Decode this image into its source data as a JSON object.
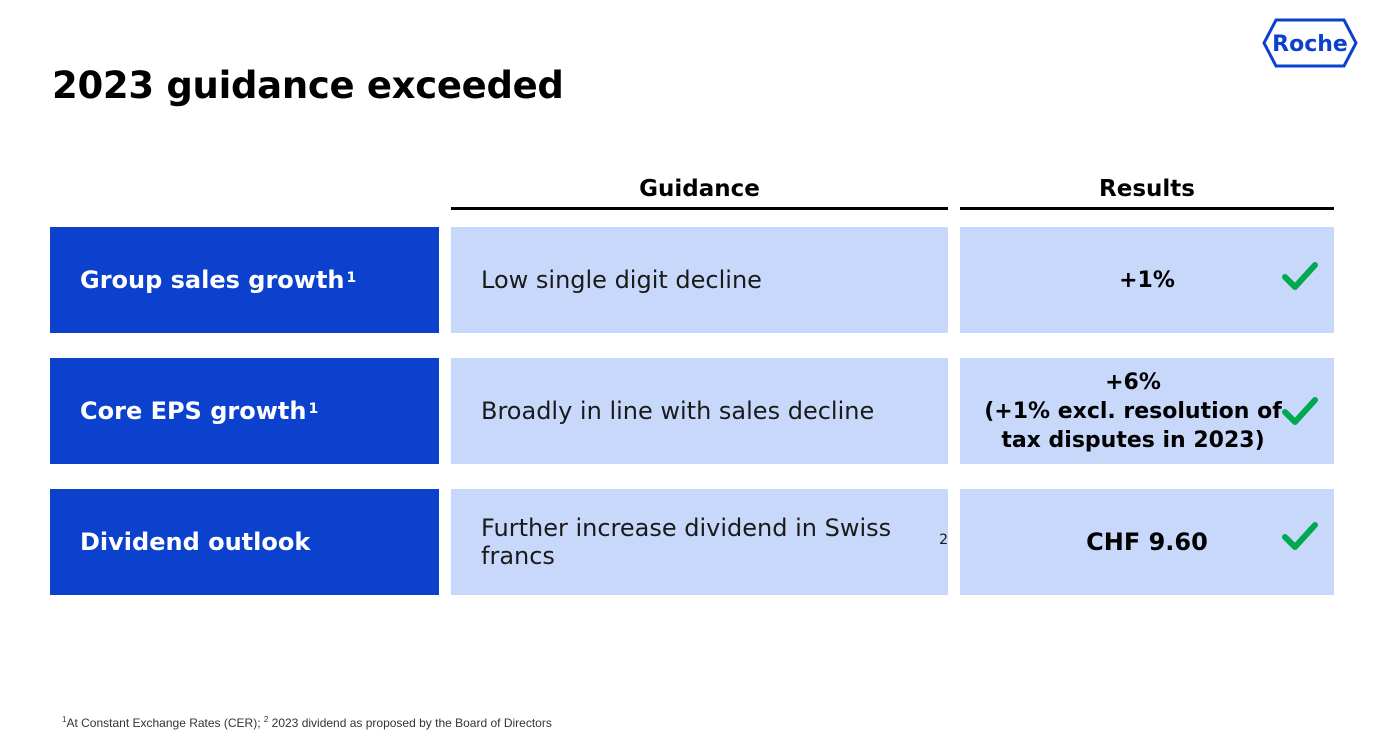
{
  "brand": {
    "logo_text": "Roche",
    "color": "#0b41cd"
  },
  "title": "2023 guidance exceeded",
  "columns": {
    "guidance": "Guidance",
    "results": "Results"
  },
  "rows": [
    {
      "label": "Group sales growth",
      "label_sup": "1",
      "guidance": "Low single digit decline",
      "guidance_sup": "",
      "result_lines": [
        "+1%"
      ],
      "status": "check-icon"
    },
    {
      "label": "Core EPS growth",
      "label_sup": "1",
      "guidance": "Broadly in line with sales decline",
      "guidance_sup": "",
      "result_lines": [
        "+6%",
        "(+1% excl. resolution of",
        "tax disputes in 2023)"
      ],
      "status": "check-icon"
    },
    {
      "label": "Dividend outlook",
      "label_sup": "",
      "guidance": "Further increase dividend in Swiss francs",
      "guidance_sup": "2",
      "result_lines": [
        "CHF 9.60"
      ],
      "status": "check-icon"
    }
  ],
  "colors": {
    "label_bg": "#0b41cd",
    "cell_bg": "#c8d8fb",
    "check": "#00a84f"
  },
  "footnote": {
    "sup1": "1",
    "part1": "At Constant Exchange Rates (CER); ",
    "sup2": "2",
    "part2": " 2023 dividend as proposed by the Board of Directors"
  }
}
